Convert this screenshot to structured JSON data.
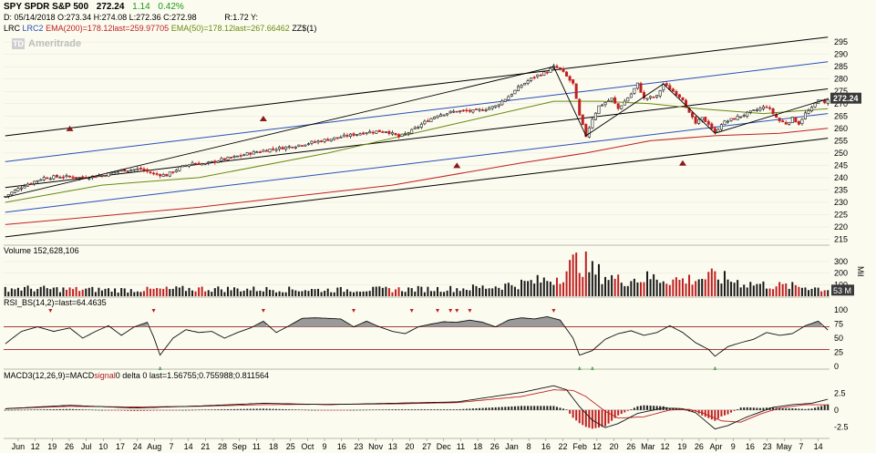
{
  "header": {
    "symbol": "SPY SPDR S&P 500",
    "last": "272.24",
    "change": "1.14",
    "change_pct": "0.42%",
    "ohlc": "D: 05/14/2018 O:273.34 H:274.08 L:272.36 C:272.98",
    "range": "R:1.72 Y:",
    "studies": [
      {
        "text": "LRC",
        "color": "#000000"
      },
      {
        "text": "LRC2",
        "color": "#2a4fb8"
      },
      {
        "text": "EMA(200)=178.12last=259.97705",
        "color": "#c02020"
      },
      {
        "text": "EMA(50)=178.12last=267.66462",
        "color": "#6a8a10"
      },
      {
        "text": "ZZ$(1)",
        "color": "#000000"
      }
    ]
  },
  "logo": {
    "text": "Ameritrade",
    "badge": "TD"
  },
  "volume": {
    "label": "Volume 152,628,106",
    "current_tag": "53 M",
    "unit": "Mil"
  },
  "rsi": {
    "label": "RSI_BS(14,2)=last=64.4635"
  },
  "macd": {
    "label_left": "MACD3(12,26,9)=MACD",
    "label_mid": "signal",
    "label_right": "0 delta 0 last=1.56755;0.755988;0.811564"
  },
  "colors": {
    "bg": "#fbfbf0",
    "up": "#1a1a1a",
    "down": "#c02020",
    "lrc": "#000000",
    "lrc2": "#2a4fb8",
    "ema200": "#c02020",
    "ema50": "#6a8a10",
    "last_tag": "#3a3a3a"
  },
  "chart_data": [
    {
      "type": "candlestick",
      "title": "SPY SPDR S&P 500",
      "y_ticks": [
        215,
        220,
        225,
        230,
        235,
        240,
        245,
        250,
        255,
        260,
        265,
        270,
        275,
        280,
        285,
        290,
        295
      ],
      "ylim": [
        213,
        298
      ],
      "last_value": 272.24,
      "x_tick_labels": [
        "Jun",
        "12",
        "19",
        "26",
        "Jul",
        "10",
        "17",
        "24",
        "Aug",
        "7",
        "14",
        "21",
        "28",
        "Sep",
        "11",
        "18",
        "25",
        "Oct",
        "9",
        "16",
        "23",
        "Nov",
        "13",
        "20",
        "27",
        "Dec",
        "11",
        "18",
        "26",
        "Jan",
        "8",
        "16",
        "22",
        "Feb",
        "12",
        "20",
        "26",
        "Mar",
        "12",
        "19",
        "26",
        "Apr",
        "9",
        "16",
        "23",
        "May",
        "7",
        "14"
      ],
      "close_path": [
        [
          0,
          232.5
        ],
        [
          6,
          237
        ],
        [
          12,
          240
        ],
        [
          18,
          240.5
        ],
        [
          24,
          240
        ],
        [
          30,
          241
        ],
        [
          36,
          243
        ],
        [
          42,
          243.5
        ],
        [
          46,
          241.5
        ],
        [
          50,
          241
        ],
        [
          54,
          244
        ],
        [
          58,
          246
        ],
        [
          62,
          245.5
        ],
        [
          66,
          247
        ],
        [
          70,
          248
        ],
        [
          76,
          250
        ],
        [
          82,
          251.5
        ],
        [
          88,
          252.5
        ],
        [
          94,
          254
        ],
        [
          100,
          255.5
        ],
        [
          106,
          257
        ],
        [
          112,
          258.5
        ],
        [
          118,
          259
        ],
        [
          122,
          256.5
        ],
        [
          126,
          259
        ],
        [
          130,
          262.5
        ],
        [
          134,
          265.5
        ],
        [
          140,
          267
        ],
        [
          146,
          267
        ],
        [
          152,
          269
        ],
        [
          156,
          273
        ],
        [
          160,
          277.5
        ],
        [
          164,
          281
        ],
        [
          168,
          283
        ],
        [
          170,
          285
        ],
        [
          172,
          284
        ],
        [
          176,
          278
        ],
        [
          178,
          265
        ],
        [
          180,
          257
        ],
        [
          182,
          264
        ],
        [
          184,
          269
        ],
        [
          188,
          272
        ],
        [
          190,
          268
        ],
        [
          194,
          274
        ],
        [
          196,
          278
        ],
        [
          198,
          272
        ],
        [
          202,
          273
        ],
        [
          204,
          278
        ],
        [
          206,
          276
        ],
        [
          210,
          272
        ],
        [
          212,
          266
        ],
        [
          214,
          262
        ],
        [
          216,
          264
        ],
        [
          218,
          262
        ],
        [
          220,
          258
        ],
        [
          222,
          262
        ],
        [
          226,
          264
        ],
        [
          230,
          266
        ],
        [
          234,
          268
        ],
        [
          236,
          269
        ],
        [
          238,
          266
        ],
        [
          240,
          263
        ],
        [
          242,
          262
        ],
        [
          244,
          264
        ],
        [
          246,
          262
        ],
        [
          248,
          266
        ],
        [
          250,
          268
        ],
        [
          252,
          272
        ],
        [
          254,
          270
        ],
        [
          255,
          272
        ]
      ],
      "regression_lines": [
        {
          "name": "LRC",
          "points": [
            [
              0,
              257
            ],
            [
              255,
              297
            ]
          ]
        },
        {
          "name": "LRC",
          "points": [
            [
              0,
              236
            ],
            [
              255,
              276
            ]
          ]
        },
        {
          "name": "LRC",
          "points": [
            [
              0,
              216
            ],
            [
              255,
              256
            ]
          ]
        },
        {
          "name": "LRC2",
          "points": [
            [
              0,
              246.5
            ],
            [
              255,
              287
            ]
          ]
        },
        {
          "name": "LRC2",
          "points": [
            [
              0,
              226
            ],
            [
              255,
              266
            ]
          ]
        }
      ],
      "ema200_path": [
        [
          0,
          221
        ],
        [
          60,
          228
        ],
        [
          120,
          237
        ],
        [
          160,
          246
        ],
        [
          180,
          250
        ],
        [
          200,
          255
        ],
        [
          220,
          257
        ],
        [
          240,
          258
        ],
        [
          255,
          260
        ]
      ],
      "ema50_path": [
        [
          0,
          230
        ],
        [
          30,
          237
        ],
        [
          60,
          240
        ],
        [
          100,
          250
        ],
        [
          140,
          262
        ],
        [
          170,
          271
        ],
        [
          185,
          271
        ],
        [
          200,
          270
        ],
        [
          215,
          268
        ],
        [
          235,
          266
        ],
        [
          255,
          268
        ]
      ],
      "zigzag_path": [
        [
          0,
          232
        ],
        [
          170,
          285
        ],
        [
          180,
          257
        ],
        [
          204,
          278
        ],
        [
          220,
          258
        ],
        [
          255,
          272
        ]
      ],
      "markers": [
        [
          20,
          260
        ],
        [
          80,
          264
        ],
        [
          140,
          245
        ],
        [
          210,
          246
        ]
      ]
    },
    {
      "type": "bar",
      "title": "Volume 152,628,106",
      "y_ticks": [
        100,
        200,
        300
      ],
      "ylim": [
        0,
        340
      ],
      "unit": "Mil",
      "last_value": 53,
      "profile": [
        [
          0,
          70
        ],
        [
          20,
          60
        ],
        [
          40,
          55
        ],
        [
          60,
          65
        ],
        [
          80,
          60
        ],
        [
          100,
          55
        ],
        [
          120,
          60
        ],
        [
          140,
          65
        ],
        [
          150,
          80
        ],
        [
          160,
          110
        ],
        [
          165,
          130
        ],
        [
          170,
          150
        ],
        [
          175,
          250
        ],
        [
          178,
          320
        ],
        [
          182,
          220
        ],
        [
          190,
          140
        ],
        [
          200,
          160
        ],
        [
          210,
          140
        ],
        [
          220,
          170
        ],
        [
          230,
          110
        ],
        [
          240,
          90
        ],
        [
          250,
          80
        ],
        [
          255,
          53
        ]
      ]
    },
    {
      "type": "line",
      "title": "RSI_BS(14,2)",
      "y_ticks": [
        0,
        25,
        50,
        75,
        100
      ],
      "ylim": [
        0,
        100
      ],
      "overbought": 70,
      "oversold": 30,
      "last_value": 64.4635,
      "path": [
        [
          0,
          40
        ],
        [
          5,
          62
        ],
        [
          10,
          70
        ],
        [
          15,
          62
        ],
        [
          20,
          68
        ],
        [
          24,
          50
        ],
        [
          28,
          62
        ],
        [
          32,
          72
        ],
        [
          36,
          55
        ],
        [
          40,
          70
        ],
        [
          44,
          78
        ],
        [
          46,
          52
        ],
        [
          48,
          20
        ],
        [
          52,
          50
        ],
        [
          56,
          65
        ],
        [
          60,
          60
        ],
        [
          64,
          62
        ],
        [
          68,
          50
        ],
        [
          72,
          60
        ],
        [
          76,
          68
        ],
        [
          80,
          80
        ],
        [
          84,
          60
        ],
        [
          88,
          72
        ],
        [
          92,
          85
        ],
        [
          96,
          86
        ],
        [
          100,
          85
        ],
        [
          104,
          84
        ],
        [
          108,
          70
        ],
        [
          112,
          80
        ],
        [
          116,
          70
        ],
        [
          120,
          62
        ],
        [
          124,
          58
        ],
        [
          128,
          70
        ],
        [
          132,
          75
        ],
        [
          136,
          79
        ],
        [
          140,
          78
        ],
        [
          144,
          82
        ],
        [
          148,
          78
        ],
        [
          152,
          70
        ],
        [
          156,
          82
        ],
        [
          160,
          86
        ],
        [
          164,
          84
        ],
        [
          168,
          88
        ],
        [
          172,
          82
        ],
        [
          176,
          50
        ],
        [
          178,
          20
        ],
        [
          182,
          28
        ],
        [
          186,
          48
        ],
        [
          190,
          58
        ],
        [
          194,
          63
        ],
        [
          198,
          55
        ],
        [
          202,
          60
        ],
        [
          206,
          72
        ],
        [
          210,
          60
        ],
        [
          214,
          42
        ],
        [
          218,
          30
        ],
        [
          220,
          18
        ],
        [
          224,
          35
        ],
        [
          228,
          42
        ],
        [
          232,
          48
        ],
        [
          236,
          60
        ],
        [
          240,
          55
        ],
        [
          244,
          58
        ],
        [
          248,
          72
        ],
        [
          252,
          80
        ],
        [
          255,
          64.5
        ]
      ],
      "buy_markers": [
        48,
        178,
        182,
        220
      ],
      "sell_markers": [
        14,
        46,
        80,
        108,
        126,
        134,
        138,
        140,
        144,
        170
      ]
    },
    {
      "type": "line",
      "title": "MACD3(12,26,9)",
      "y_ticks": [
        2.5,
        0,
        -2.5
      ],
      "ylim": [
        -3.8,
        4.3
      ],
      "last_value": 1.56755,
      "macd_path": [
        [
          0,
          0.2
        ],
        [
          20,
          0.7
        ],
        [
          40,
          0.3
        ],
        [
          60,
          0.6
        ],
        [
          80,
          1.0
        ],
        [
          100,
          0.8
        ],
        [
          120,
          1.0
        ],
        [
          140,
          1.2
        ],
        [
          160,
          2.6
        ],
        [
          170,
          3.6
        ],
        [
          174,
          3.0
        ],
        [
          178,
          0.5
        ],
        [
          182,
          -1.5
        ],
        [
          186,
          -2.6
        ],
        [
          190,
          -2.0
        ],
        [
          196,
          -0.5
        ],
        [
          204,
          0.3
        ],
        [
          210,
          0.2
        ],
        [
          214,
          -0.4
        ],
        [
          220,
          -2.8
        ],
        [
          224,
          -2.3
        ],
        [
          230,
          -1.0
        ],
        [
          238,
          0.4
        ],
        [
          244,
          0.8
        ],
        [
          250,
          1.0
        ],
        [
          255,
          1.6
        ]
      ],
      "signal_path": [
        [
          0,
          0.2
        ],
        [
          20,
          0.55
        ],
        [
          40,
          0.45
        ],
        [
          60,
          0.55
        ],
        [
          80,
          0.8
        ],
        [
          100,
          0.85
        ],
        [
          120,
          0.9
        ],
        [
          140,
          1.1
        ],
        [
          160,
          2.0
        ],
        [
          170,
          3.0
        ],
        [
          176,
          2.9
        ],
        [
          180,
          2.0
        ],
        [
          186,
          -0.2
        ],
        [
          190,
          -1.2
        ],
        [
          198,
          -1.0
        ],
        [
          206,
          0.0
        ],
        [
          212,
          0.1
        ],
        [
          216,
          -0.4
        ],
        [
          222,
          -1.6
        ],
        [
          228,
          -1.8
        ],
        [
          234,
          -0.6
        ],
        [
          240,
          0.3
        ],
        [
          248,
          0.8
        ],
        [
          255,
          0.76
        ]
      ]
    }
  ]
}
